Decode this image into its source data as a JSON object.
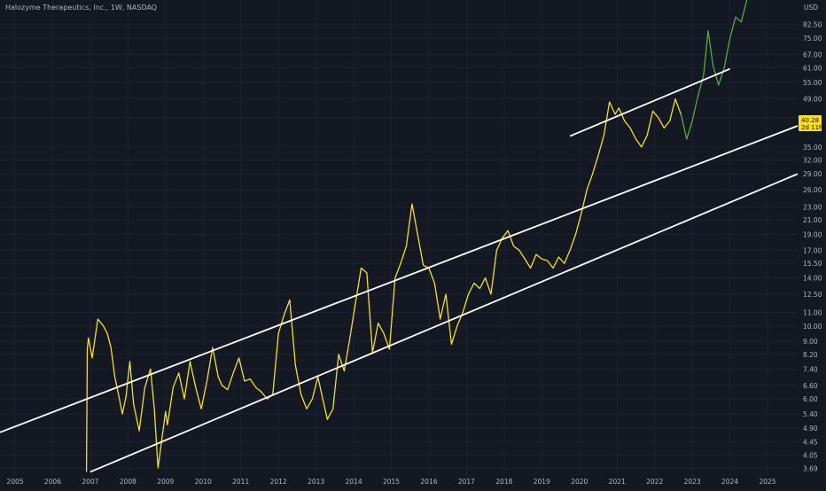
{
  "header": {
    "title": "Halozyme Therapeutics, Inc., 1W, NASDAQ"
  },
  "colors": {
    "background": "#141823",
    "grid": "#1e2230",
    "price_history": "#f5df2a",
    "price_recent": "#55a84a",
    "channel": "#ffffff",
    "badge": "#f5df2a",
    "text": "#b2b5be"
  },
  "chart_data": {
    "type": "line",
    "title": "Halozyme Therapeutics, Inc., 1W, NASDAQ",
    "y_unit": "USD",
    "y_scale": "log",
    "ylim": [
      3.5,
      98
    ],
    "xlim": [
      2004.6,
      2025.8
    ],
    "grid": true,
    "x_ticks": [
      "2005",
      "2006",
      "2007",
      "2008",
      "2009",
      "2010",
      "2011",
      "2012",
      "2013",
      "2014",
      "2015",
      "2016",
      "2017",
      "2018",
      "2019",
      "2020",
      "2021",
      "2022",
      "2023",
      "2024",
      "2025"
    ],
    "y_ticks": [
      "82.50",
      "75.00",
      "67.00",
      "61.00",
      "55.00",
      "49.00",
      "43.00",
      "35.00",
      "32.00",
      "29.00",
      "26.00",
      "23.00",
      "21.00",
      "19.00",
      "17.00",
      "15.50",
      "14.00",
      "12.50",
      "11.00",
      "10.00",
      "9.00",
      "8.20",
      "7.40",
      "6.60",
      "6.00",
      "5.40",
      "4.90",
      "4.45",
      "4.05",
      "3.69"
    ],
    "last_price": {
      "value": "40.28",
      "countdown": "2d 11h"
    },
    "series": [
      {
        "color": "#f5df2a",
        "x": [
          2006.9,
          2006.92,
          2006.95,
          2007.05,
          2007.2,
          2007.35,
          2007.45,
          2007.55,
          2007.65,
          2007.75,
          2007.85,
          2007.95,
          2008.05,
          2008.15,
          2008.3,
          2008.45,
          2008.6,
          2008.7,
          2008.8,
          2008.9,
          2009.0,
          2009.05,
          2009.2,
          2009.35,
          2009.5,
          2009.65,
          2009.8,
          2009.95,
          2010.1,
          2010.25,
          2010.4,
          2010.5,
          2010.65,
          2010.8,
          2010.95,
          2011.1,
          2011.25,
          2011.4,
          2011.55,
          2011.7,
          2011.85,
          2012.0,
          2012.15,
          2012.3,
          2012.45,
          2012.6,
          2012.75,
          2012.9,
          2013.05,
          2013.15,
          2013.3,
          2013.45,
          2013.6,
          2013.75,
          2013.9,
          2014.05,
          2014.2,
          2014.35,
          2014.5,
          2014.65,
          2014.8,
          2014.95,
          2015.1,
          2015.25,
          2015.4,
          2015.55,
          2015.7,
          2015.85,
          2016.0,
          2016.15,
          2016.3,
          2016.45,
          2016.6,
          2016.75,
          2016.9,
          2017.05,
          2017.2,
          2017.35,
          2017.5,
          2017.65,
          2017.8,
          2017.95,
          2018.1,
          2018.25,
          2018.4,
          2018.55,
          2018.7,
          2018.85,
          2019.0,
          2019.15,
          2019.3,
          2019.45,
          2019.6,
          2019.75,
          2019.9,
          2020.05,
          2020.2,
          2020.35,
          2020.5,
          2020.65,
          2020.8,
          2020.95,
          2021.05,
          2021.2,
          2021.35,
          2021.5,
          2021.65,
          2021.8,
          2021.95,
          2022.1,
          2022.25,
          2022.4,
          2022.55,
          2022.7
        ],
        "y": [
          3.6,
          8.5,
          9.2,
          8.0,
          10.5,
          10.0,
          9.5,
          8.6,
          7.0,
          6.2,
          5.4,
          6.1,
          7.8,
          5.8,
          4.8,
          6.5,
          7.4,
          5.6,
          3.7,
          4.5,
          5.5,
          5.0,
          6.5,
          7.2,
          6.0,
          7.8,
          6.5,
          5.6,
          6.8,
          8.6,
          7.0,
          6.6,
          6.4,
          7.2,
          8.0,
          6.8,
          6.9,
          6.5,
          6.3,
          6.0,
          6.2,
          9.5,
          10.8,
          12.0,
          7.6,
          6.2,
          5.6,
          6.0,
          7.0,
          6.2,
          5.2,
          5.6,
          8.2,
          7.3,
          9.2,
          11.8,
          15.0,
          14.5,
          8.3,
          10.2,
          9.5,
          8.5,
          14.0,
          15.5,
          17.5,
          23.5,
          19.0,
          15.3,
          15.0,
          13.5,
          10.5,
          12.5,
          8.8,
          10.0,
          11.0,
          12.5,
          13.5,
          13.0,
          14.0,
          12.5,
          17.0,
          18.5,
          19.5,
          17.5,
          17.0,
          16.0,
          15.0,
          16.5,
          16.0,
          15.8,
          15.0,
          16.2,
          15.5,
          17.0,
          19.0,
          22.0,
          26.0,
          29.0,
          33.0,
          38.0,
          48.0,
          44.0,
          46.0,
          42.0,
          40.0,
          37.0,
          35.0,
          38.0,
          45.0,
          43.0,
          40.0,
          42.0,
          49.0,
          44.0
        ]
      },
      {
        "color": "#55a84a",
        "x": [
          2022.7,
          2022.85,
          2023.0,
          2023.15,
          2023.3,
          2023.42,
          2023.55,
          2023.7,
          2023.85,
          2024.0,
          2024.15,
          2024.3,
          2024.45
        ],
        "y": [
          44.0,
          37.0,
          42.0,
          50.0,
          58.0,
          79.0,
          62.0,
          54.0,
          61.0,
          75.0,
          87.0,
          84.0,
          98.0
        ]
      }
    ],
    "channels": [
      {
        "color": "#ffffff",
        "x": [
          2004.6,
          2025.8
        ],
        "y": [
          4.75,
          40.6
        ]
      },
      {
        "color": "#ffffff",
        "x": [
          2007.0,
          2025.8
        ],
        "y": [
          3.6,
          29.0
        ]
      },
      {
        "color": "#ffffff",
        "x": [
          2019.75,
          2024.0
        ],
        "y": [
          37.8,
          60.5
        ]
      }
    ]
  }
}
